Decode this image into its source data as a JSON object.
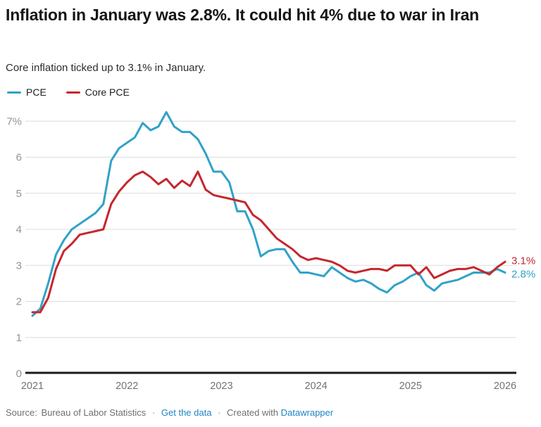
{
  "header": {
    "title": "Inflation in January was 2.8%. It could hit 4% due to war in Iran",
    "subtitle": "Core inflation ticked up to 3.1% in January."
  },
  "footer": {
    "source_label": "Source:",
    "source": "Bureau of Labor Statistics",
    "separator": "·",
    "data_link": "Get the data",
    "created_with": "Created with",
    "datawrapper_link": "Datawrapper"
  },
  "colors": {
    "pce_blue": "#31a2c8",
    "core_red": "#c5272d",
    "gridline": "#dcdcdc",
    "baseline": "#1a1a1a",
    "y_tick_text": "#8f959a",
    "x_tick_text": "#6e7377",
    "title_text": "#151515",
    "link_blue": "#1f85c4"
  },
  "chart_data": {
    "type": "line",
    "title": "Inflation in January was 2.8%. It could hit 4% due to war in Iran",
    "subtitle": "Core inflation ticked up to 3.1% in January.",
    "xlabel": "",
    "ylabel": "",
    "ylim": [
      0,
      7.6
    ],
    "grid": true,
    "legend_position": "top-left",
    "x": [
      "2021-01",
      "2021-02",
      "2021-03",
      "2021-04",
      "2021-05",
      "2021-06",
      "2021-07",
      "2021-08",
      "2021-09",
      "2021-10",
      "2021-11",
      "2021-12",
      "2022-01",
      "2022-02",
      "2022-03",
      "2022-04",
      "2022-05",
      "2022-06",
      "2022-07",
      "2022-08",
      "2022-09",
      "2022-10",
      "2022-11",
      "2022-12",
      "2023-01",
      "2023-02",
      "2023-03",
      "2023-04",
      "2023-05",
      "2023-06",
      "2023-07",
      "2023-08",
      "2023-09",
      "2023-10",
      "2023-11",
      "2023-12",
      "2024-01",
      "2024-02",
      "2024-03",
      "2024-04",
      "2024-05",
      "2024-06",
      "2024-07",
      "2024-08",
      "2024-09",
      "2024-10",
      "2024-11",
      "2024-12",
      "2025-01",
      "2025-02",
      "2025-03",
      "2025-04",
      "2025-05",
      "2025-06",
      "2025-07",
      "2025-08",
      "2025-09",
      "2025-10",
      "2025-11",
      "2025-12",
      "2026-01"
    ],
    "series": [
      {
        "name": "PCE",
        "color": "#31a2c8",
        "end_label": "2.8%",
        "values": [
          1.6,
          1.8,
          2.5,
          3.3,
          3.7,
          4.0,
          4.15,
          4.3,
          4.45,
          4.7,
          5.9,
          6.25,
          6.4,
          6.55,
          6.95,
          6.75,
          6.85,
          7.25,
          6.85,
          6.7,
          6.7,
          6.5,
          6.1,
          5.6,
          5.6,
          5.3,
          4.5,
          4.5,
          4.0,
          3.25,
          3.4,
          3.45,
          3.45,
          3.1,
          2.8,
          2.8,
          2.75,
          2.7,
          2.95,
          2.8,
          2.65,
          2.55,
          2.6,
          2.5,
          2.35,
          2.25,
          2.45,
          2.55,
          2.7,
          2.8,
          2.45,
          2.3,
          2.5,
          2.55,
          2.6,
          2.7,
          2.8,
          2.8,
          2.8,
          2.9,
          2.8
        ]
      },
      {
        "name": "Core PCE",
        "color": "#c5272d",
        "end_label": "3.1%",
        "values": [
          1.7,
          1.7,
          2.1,
          2.9,
          3.4,
          3.6,
          3.85,
          3.9,
          3.95,
          4.0,
          4.7,
          5.05,
          5.3,
          5.5,
          5.6,
          5.45,
          5.25,
          5.4,
          5.15,
          5.35,
          5.2,
          5.6,
          5.1,
          4.95,
          4.9,
          4.85,
          4.8,
          4.75,
          4.4,
          4.25,
          4.0,
          3.75,
          3.6,
          3.45,
          3.25,
          3.15,
          3.2,
          3.15,
          3.1,
          3.0,
          2.85,
          2.8,
          2.85,
          2.9,
          2.9,
          2.85,
          3.0,
          3.0,
          3.0,
          2.75,
          2.95,
          2.65,
          2.75,
          2.85,
          2.9,
          2.9,
          2.95,
          2.85,
          2.75,
          2.95,
          3.1
        ]
      }
    ],
    "y_ticks": [
      {
        "value": 0,
        "label": "0"
      },
      {
        "value": 1,
        "label": "1"
      },
      {
        "value": 2,
        "label": "2"
      },
      {
        "value": 3,
        "label": "3"
      },
      {
        "value": 4,
        "label": "4"
      },
      {
        "value": 5,
        "label": "5"
      },
      {
        "value": 6,
        "label": "6"
      },
      {
        "value": 7,
        "label": "7%"
      }
    ],
    "x_ticks": [
      {
        "index": 0,
        "label": "2021"
      },
      {
        "index": 12,
        "label": "2022"
      },
      {
        "index": 24,
        "label": "2023"
      },
      {
        "index": 36,
        "label": "2024"
      },
      {
        "index": 48,
        "label": "2025"
      },
      {
        "index": 60,
        "label": "2026"
      }
    ]
  }
}
